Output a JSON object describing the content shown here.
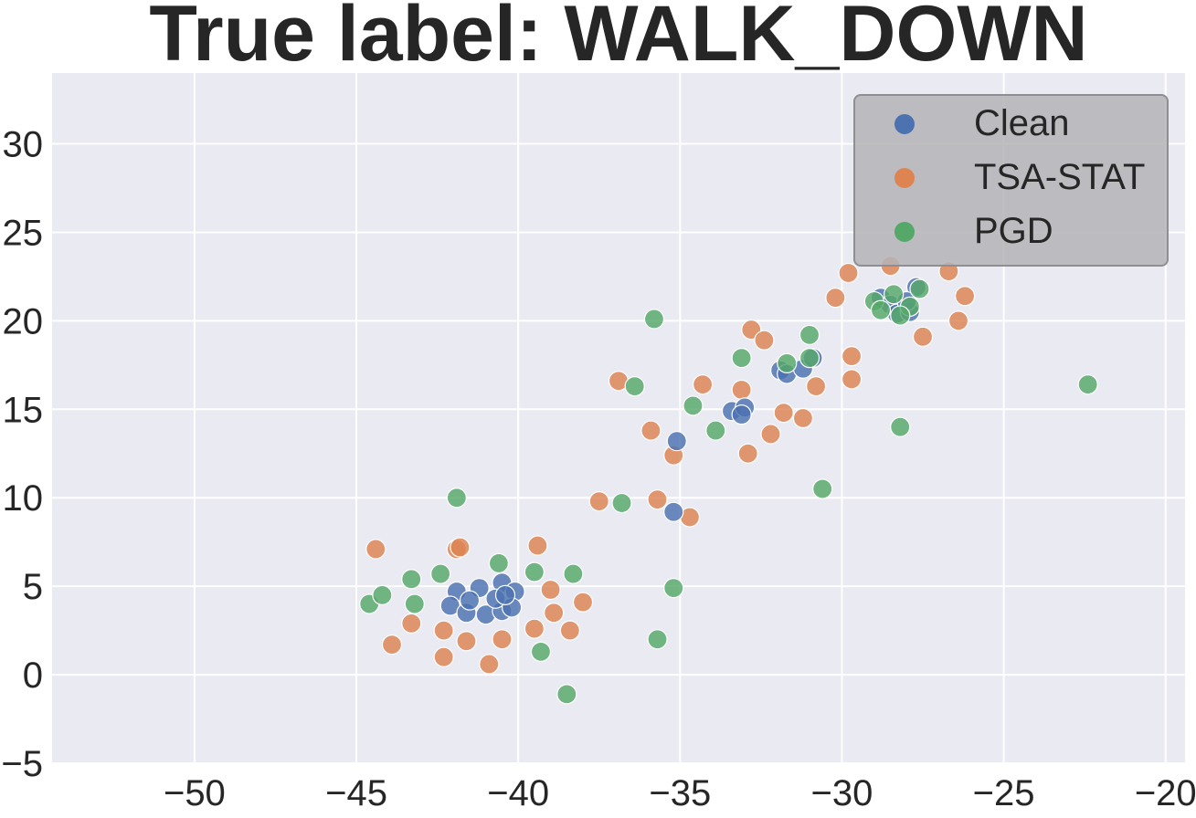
{
  "chart_data": {
    "type": "scatter",
    "title": "True label: WALK_DOWN",
    "xlabel": "",
    "ylabel": "",
    "xlim": [
      -54.4,
      -19.4
    ],
    "ylim": [
      -5,
      34
    ],
    "xticks": [
      -50,
      -45,
      -40,
      -35,
      -30,
      -25,
      -20
    ],
    "yticks": [
      -5,
      0,
      5,
      10,
      15,
      20,
      25,
      30
    ],
    "xtick_labels": [
      "−50",
      "−45",
      "−40",
      "−35",
      "−30",
      "−25",
      "−20"
    ],
    "ytick_labels": [
      "−5",
      "0",
      "5",
      "10",
      "15",
      "20",
      "25",
      "30"
    ],
    "grid": true,
    "legend_position": "top-right",
    "background": "#eaeaf2",
    "series": [
      {
        "name": "Clean",
        "color": "#4c72b0",
        "points": [
          [
            -41.9,
            4.7
          ],
          [
            -41.2,
            4.9
          ],
          [
            -40.5,
            5.2
          ],
          [
            -40.1,
            4.7
          ],
          [
            -42.1,
            3.9
          ],
          [
            -41.6,
            3.5
          ],
          [
            -41.0,
            3.4
          ],
          [
            -40.5,
            3.6
          ],
          [
            -40.2,
            3.8
          ],
          [
            -41.5,
            4.2
          ],
          [
            -40.7,
            4.3
          ],
          [
            -40.4,
            4.5
          ],
          [
            -35.1,
            13.2
          ],
          [
            -35.2,
            9.2
          ],
          [
            -33.4,
            14.9
          ],
          [
            -33.0,
            15.1
          ],
          [
            -33.1,
            14.7
          ],
          [
            -31.9,
            17.2
          ],
          [
            -31.7,
            17.0
          ],
          [
            -31.2,
            17.3
          ],
          [
            -30.9,
            17.9
          ],
          [
            -28.8,
            21.3
          ],
          [
            -28.5,
            20.9
          ],
          [
            -28.3,
            20.4
          ],
          [
            -27.9,
            20.5
          ],
          [
            -27.7,
            21.9
          ],
          [
            -28.0,
            21.1
          ]
        ]
      },
      {
        "name": "TSA-STAT",
        "color": "#dd8452",
        "points": [
          [
            -44.4,
            7.1
          ],
          [
            -41.9,
            7.1
          ],
          [
            -41.8,
            7.2
          ],
          [
            -39.4,
            7.3
          ],
          [
            -39.0,
            4.8
          ],
          [
            -38.0,
            4.1
          ],
          [
            -38.9,
            3.5
          ],
          [
            -39.5,
            2.6
          ],
          [
            -38.4,
            2.5
          ],
          [
            -40.5,
            2.0
          ],
          [
            -40.9,
            0.6
          ],
          [
            -41.6,
            1.9
          ],
          [
            -42.3,
            2.5
          ],
          [
            -42.3,
            1.0
          ],
          [
            -43.3,
            2.9
          ],
          [
            -43.9,
            1.7
          ],
          [
            -37.5,
            9.8
          ],
          [
            -35.7,
            9.9
          ],
          [
            -34.7,
            8.9
          ],
          [
            -35.9,
            13.8
          ],
          [
            -35.2,
            12.4
          ],
          [
            -36.9,
            16.6
          ],
          [
            -34.3,
            16.4
          ],
          [
            -33.1,
            16.1
          ],
          [
            -32.8,
            19.5
          ],
          [
            -32.4,
            18.9
          ],
          [
            -31.8,
            14.8
          ],
          [
            -31.2,
            14.5
          ],
          [
            -32.2,
            13.6
          ],
          [
            -32.9,
            12.5
          ],
          [
            -30.8,
            16.3
          ],
          [
            -29.7,
            16.7
          ],
          [
            -29.7,
            18.0
          ],
          [
            -30.2,
            21.3
          ],
          [
            -29.8,
            22.7
          ],
          [
            -28.5,
            23.1
          ],
          [
            -26.7,
            22.8
          ],
          [
            -26.2,
            21.4
          ],
          [
            -26.4,
            20.0
          ],
          [
            -27.5,
            19.1
          ]
        ]
      },
      {
        "name": "PGD",
        "color": "#55a868",
        "points": [
          [
            -44.6,
            4.0
          ],
          [
            -44.2,
            4.5
          ],
          [
            -43.2,
            4.0
          ],
          [
            -43.3,
            5.4
          ],
          [
            -42.4,
            5.7
          ],
          [
            -40.6,
            6.3
          ],
          [
            -39.5,
            5.8
          ],
          [
            -38.3,
            5.7
          ],
          [
            -39.3,
            1.3
          ],
          [
            -38.5,
            -1.1
          ],
          [
            -41.9,
            10.0
          ],
          [
            -36.8,
            9.7
          ],
          [
            -35.2,
            4.9
          ],
          [
            -35.7,
            2.0
          ],
          [
            -35.8,
            20.1
          ],
          [
            -36.4,
            16.3
          ],
          [
            -34.6,
            15.2
          ],
          [
            -33.9,
            13.8
          ],
          [
            -33.1,
            17.9
          ],
          [
            -31.7,
            17.6
          ],
          [
            -31.0,
            17.9
          ],
          [
            -31.0,
            19.2
          ],
          [
            -30.6,
            10.5
          ],
          [
            -28.2,
            14.0
          ],
          [
            -29.0,
            21.1
          ],
          [
            -28.4,
            21.5
          ],
          [
            -27.9,
            20.8
          ],
          [
            -27.6,
            21.8
          ],
          [
            -28.2,
            20.3
          ],
          [
            -28.8,
            20.6
          ],
          [
            -22.4,
            16.4
          ]
        ]
      }
    ]
  }
}
